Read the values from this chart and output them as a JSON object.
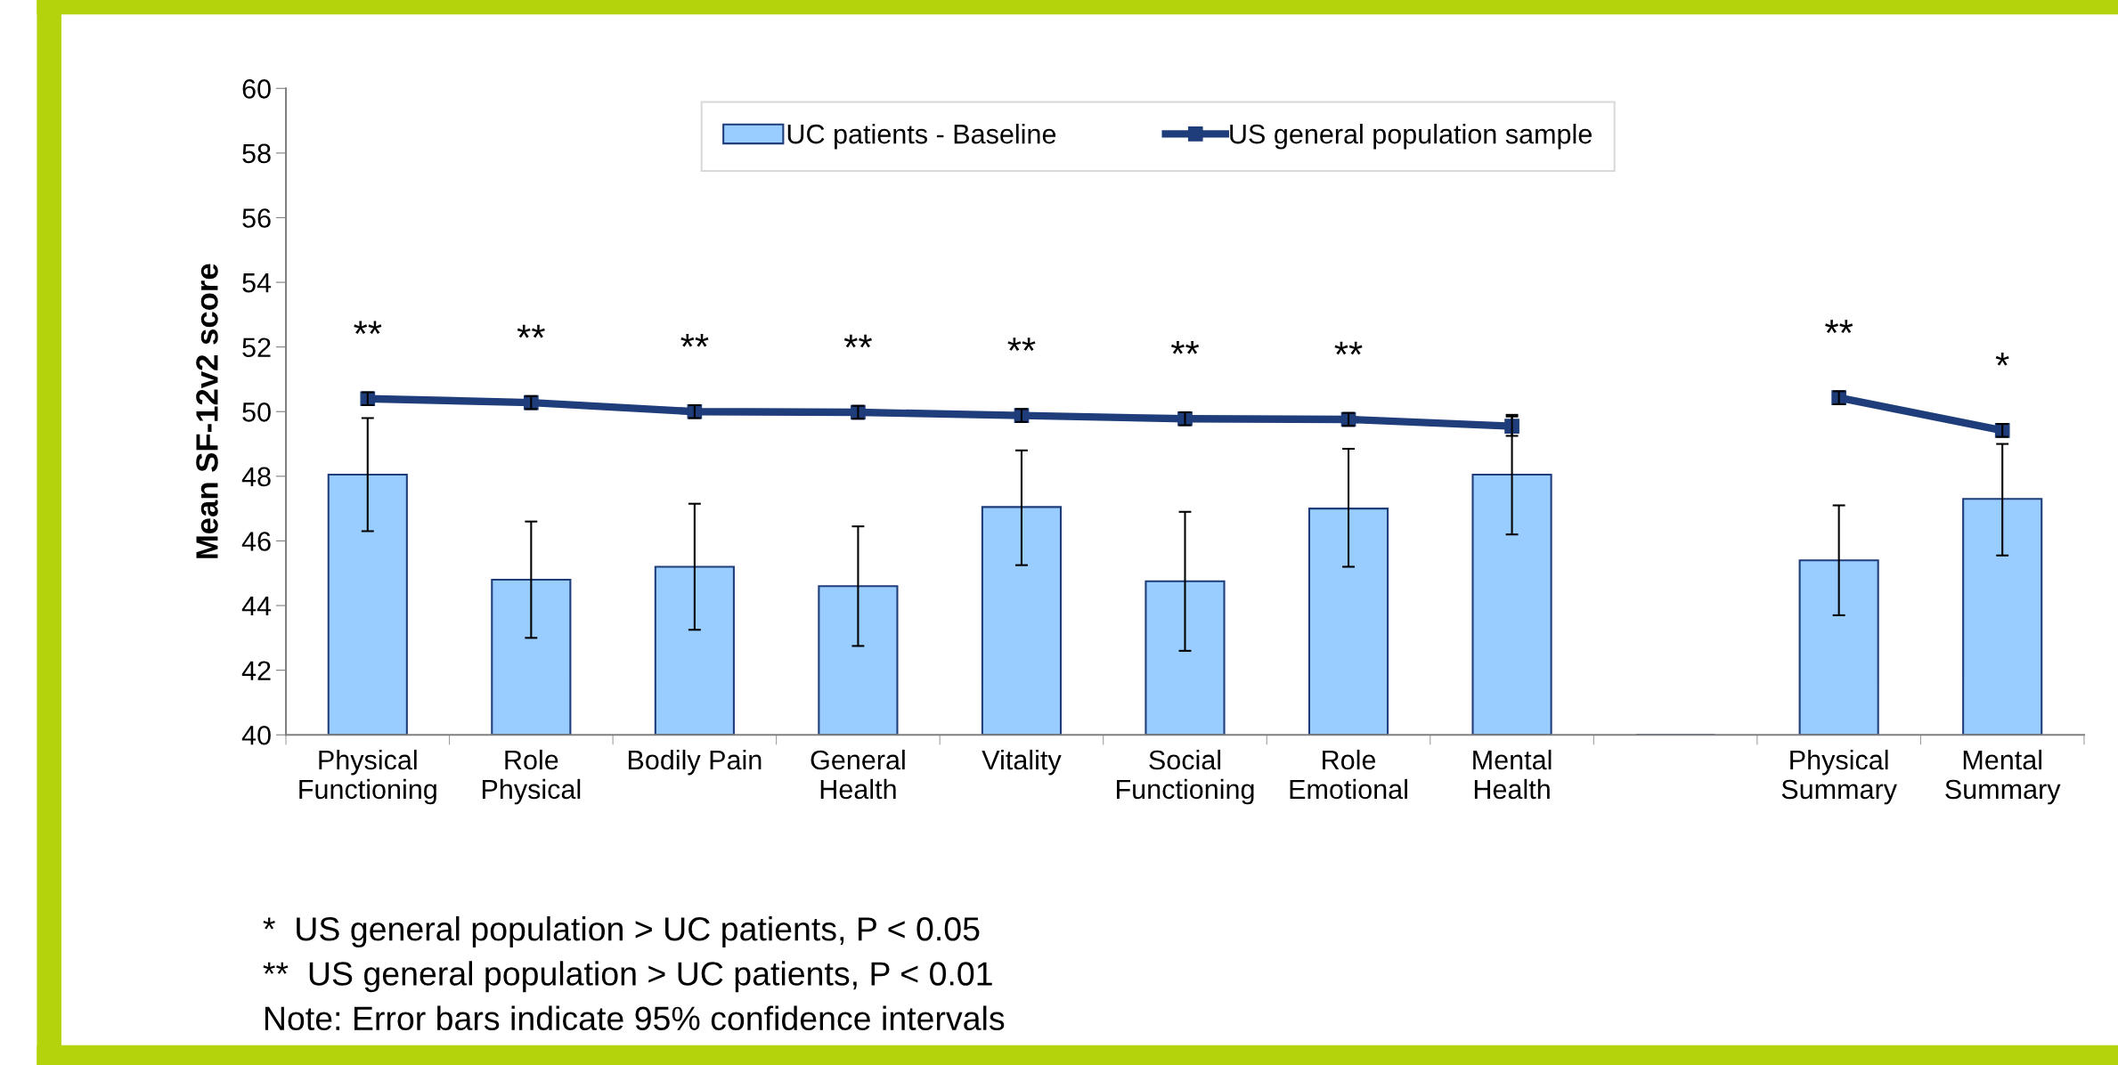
{
  "chart_data": {
    "type": "bar",
    "categories": [
      "Physical\nFunctioning",
      "Role\nPhysical",
      "Bodily Pain",
      "General\nHealth",
      "Vitality",
      "Social\nFunctioning",
      "Role\nEmotional",
      "Mental\nHealth",
      null,
      "Physical\nSummary",
      "Mental\nSummary"
    ],
    "ylabel": "Mean SF-12v2 score",
    "ylim": [
      40,
      60
    ],
    "yticks": [
      40,
      42,
      44,
      46,
      48,
      50,
      52,
      54,
      56,
      58,
      60
    ],
    "grid": false,
    "legend": "top",
    "series": [
      {
        "name": "UC patients - Baseline",
        "color": "#99ccff",
        "values": [
          48.05,
          44.8,
          45.2,
          44.6,
          47.05,
          44.75,
          47.0,
          48.05,
          null,
          45.4,
          47.3
        ],
        "errors": [
          [
            46.3,
            49.8
          ],
          [
            43.0,
            46.6
          ],
          [
            43.25,
            47.15
          ],
          [
            42.75,
            46.45
          ],
          [
            45.25,
            48.8
          ],
          [
            42.6,
            46.9
          ],
          [
            45.2,
            48.85
          ],
          [
            46.2,
            49.9
          ],
          null,
          [
            43.7,
            47.1
          ],
          [
            45.55,
            49.0
          ]
        ]
      },
      {
        "name": "US general population sample",
        "type": "line",
        "color": "#1f3d7a",
        "marker": "square",
        "line_style": "solid",
        "values": [
          50.4,
          50.28,
          50.0,
          49.98,
          49.88,
          49.78,
          49.76,
          49.55,
          null,
          50.43,
          49.42
        ],
        "errors": [
          0.2,
          0.2,
          0.2,
          0.2,
          0.2,
          0.2,
          0.2,
          0.3,
          null,
          0.2,
          0.2
        ]
      }
    ],
    "annotations": [
      {
        "text": "**",
        "x": "Physical\nFunctioning",
        "y": 50.4
      },
      {
        "text": "**",
        "x": "Role\nPhysical",
        "y": 50.28
      },
      {
        "text": "**",
        "x": "Bodily Pain",
        "y": 50.0
      },
      {
        "text": "**",
        "x": "General\nHealth",
        "y": 49.98
      },
      {
        "text": "**",
        "x": "Vitality",
        "y": 49.88
      },
      {
        "text": "**",
        "x": "Social\nFunctioning",
        "y": 49.78
      },
      {
        "text": "**",
        "x": "Role\nEmotional",
        "y": 49.76
      },
      {
        "text": "**",
        "x": "Physical\nSummary",
        "y": 50.43
      },
      {
        "text": "*",
        "x": "Mental\nSummary",
        "y": 49.42
      },
      "*  US general population > UC patients, P < 0.05",
      "**  US general population > UC patients, P < 0.01",
      "Note: Error bars indicate 95% confidence intervals"
    ]
  }
}
